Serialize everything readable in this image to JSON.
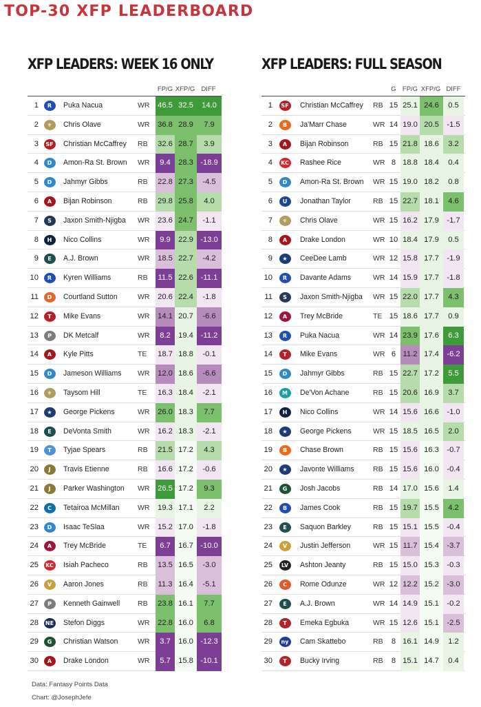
{
  "page_title": "TOP-30 XFP LEADERBOARD",
  "footer": {
    "source": "Data: Fantasy Points Data",
    "credit": "Chart: @JosephJefe"
  },
  "colors": {
    "title": "#c8343a",
    "positive_scale": [
      "#e8f4e4",
      "#b5dcaa",
      "#7cbf6c",
      "#3f9a3a"
    ],
    "negative_scale": [
      "#f1e6f1",
      "#d9bfda",
      "#b58cbc",
      "#7d3f95"
    ]
  },
  "teams": {
    "LAR": {
      "icon": "rams-icon",
      "color": "#1f4fb0",
      "glyph": "R"
    },
    "NO": {
      "icon": "saints-icon",
      "color": "#b39a5e",
      "glyph": "⚜"
    },
    "SF": {
      "icon": "49ers-icon",
      "color": "#b31f24",
      "glyph": "SF"
    },
    "DET": {
      "icon": "lions-icon",
      "color": "#2f88cc",
      "glyph": "D"
    },
    "ATL": {
      "icon": "falcons-icon",
      "color": "#a5161c",
      "glyph": "A"
    },
    "SEA": {
      "icon": "seahawks-icon",
      "color": "#24385a",
      "glyph": "S"
    },
    "HOU": {
      "icon": "texans-icon",
      "color": "#0c2340",
      "glyph": "H"
    },
    "PHI": {
      "icon": "eagles-icon",
      "color": "#1d4f4f",
      "glyph": "E"
    },
    "DEN": {
      "icon": "broncos-icon",
      "color": "#e2672c",
      "glyph": "D"
    },
    "TB": {
      "icon": "buccaneers-icon",
      "color": "#b3222a",
      "glyph": "T"
    },
    "PIT": {
      "icon": "steelers-icon",
      "color": "#7d7d7d",
      "glyph": "P"
    },
    "DAL": {
      "icon": "cowboys-icon",
      "color": "#1d3b74",
      "glyph": "★"
    },
    "TEN": {
      "icon": "titans-icon",
      "color": "#4b92db",
      "glyph": "T"
    },
    "JAX": {
      "icon": "jaguars-icon",
      "color": "#8a7a3a",
      "glyph": "J"
    },
    "CAR": {
      "icon": "panthers-icon",
      "color": "#0e6ea5",
      "glyph": "C"
    },
    "ARI": {
      "icon": "cardinals-icon",
      "color": "#a0143a",
      "glyph": "A"
    },
    "KC": {
      "icon": "chiefs-icon",
      "color": "#d8232a",
      "glyph": "KC"
    },
    "MIN": {
      "icon": "vikings-icon",
      "color": "#caa03a",
      "glyph": "V"
    },
    "GB": {
      "icon": "packers-icon",
      "color": "#1f5133",
      "glyph": "G"
    },
    "NE": {
      "icon": "patriots-icon",
      "color": "#1a2f56",
      "glyph": "NE"
    },
    "CIN": {
      "icon": "bengals-icon",
      "color": "#e96a1e",
      "glyph": "B"
    },
    "IND": {
      "icon": "colts-icon",
      "color": "#1f4690",
      "glyph": "U"
    },
    "MIA": {
      "icon": "dolphins-icon",
      "color": "#14a0a5",
      "glyph": "M"
    },
    "BUF": {
      "icon": "bills-icon",
      "color": "#1e4fb0",
      "glyph": "B"
    },
    "LV": {
      "icon": "raiders-icon",
      "color": "#222222",
      "glyph": "LV"
    },
    "CHI": {
      "icon": "bears-icon",
      "color": "#e0592a",
      "glyph": "C"
    },
    "NYG": {
      "icon": "giants-icon",
      "color": "#1f3a9a",
      "glyph": "ny"
    }
  },
  "chart_data": [
    {
      "type": "table",
      "title": "XFP LEADERS: WEEK 16 ONLY",
      "columns": [
        "FP/G",
        "XFP/G",
        "DIFF"
      ],
      "rows": [
        {
          "rank": "1",
          "team": "LAR",
          "player": "Puka Nacua",
          "pos": "WR",
          "fpg": 46.5,
          "xfpg": 32.5,
          "diff": 14.0
        },
        {
          "rank": "2",
          "team": "NO",
          "player": "Chris Olave",
          "pos": "WR",
          "fpg": 36.8,
          "xfpg": 28.9,
          "diff": 7.9
        },
        {
          "rank": "3",
          "team": "SF",
          "player": "Christian McCaffrey",
          "pos": "RB",
          "fpg": 32.6,
          "xfpg": 28.7,
          "diff": 3.9
        },
        {
          "rank": "4",
          "team": "DET",
          "player": "Amon-Ra St. Brown",
          "pos": "WR",
          "fpg": 9.4,
          "xfpg": 28.3,
          "diff": -18.9
        },
        {
          "rank": "5",
          "team": "DET",
          "player": "Jahmyr Gibbs",
          "pos": "RB",
          "fpg": 22.8,
          "xfpg": 27.3,
          "diff": -4.5
        },
        {
          "rank": "6",
          "team": "ATL",
          "player": "Bijan Robinson",
          "pos": "RB",
          "fpg": 29.8,
          "xfpg": 25.8,
          "diff": 4.0
        },
        {
          "rank": "7",
          "team": "SEA",
          "player": "Jaxon Smith-Njigba",
          "pos": "WR",
          "fpg": 23.6,
          "xfpg": 24.7,
          "diff": -1.1
        },
        {
          "rank": "8",
          "team": "HOU",
          "player": "Nico Collins",
          "pos": "WR",
          "fpg": 9.9,
          "xfpg": 22.9,
          "diff": -13.0
        },
        {
          "rank": "9",
          "team": "PHI",
          "player": "A.J. Brown",
          "pos": "WR",
          "fpg": 18.5,
          "xfpg": 22.7,
          "diff": -4.2
        },
        {
          "rank": "10",
          "team": "LAR",
          "player": "Kyren Williams",
          "pos": "RB",
          "fpg": 11.5,
          "xfpg": 22.6,
          "diff": -11.1
        },
        {
          "rank": "11",
          "team": "DEN",
          "player": "Courtland Sutton",
          "pos": "WR",
          "fpg": 20.6,
          "xfpg": 22.4,
          "diff": -1.8
        },
        {
          "rank": "12",
          "team": "TB",
          "player": "Mike Evans",
          "pos": "WR",
          "fpg": 14.1,
          "xfpg": 20.7,
          "diff": -6.6
        },
        {
          "rank": "13",
          "team": "PIT",
          "player": "DK Metcalf",
          "pos": "WR",
          "fpg": 8.2,
          "xfpg": 19.4,
          "diff": -11.2
        },
        {
          "rank": "14",
          "team": "ATL",
          "player": "Kyle Pitts",
          "pos": "TE",
          "fpg": 18.7,
          "xfpg": 18.8,
          "diff": -0.1
        },
        {
          "rank": "15",
          "team": "DET",
          "player": "Jameson Williams",
          "pos": "WR",
          "fpg": 12.0,
          "xfpg": 18.6,
          "diff": -6.6
        },
        {
          "rank": "16",
          "team": "NO",
          "player": "Taysom Hill",
          "pos": "TE",
          "fpg": 16.3,
          "xfpg": 18.4,
          "diff": -2.1
        },
        {
          "rank": "17",
          "team": "DAL",
          "player": "George Pickens",
          "pos": "WR",
          "fpg": 26.0,
          "xfpg": 18.3,
          "diff": 7.7
        },
        {
          "rank": "18",
          "team": "PHI",
          "player": "DeVonta Smith",
          "pos": "WR",
          "fpg": 16.2,
          "xfpg": 18.3,
          "diff": -2.1
        },
        {
          "rank": "19",
          "team": "TEN",
          "player": "Tyjae Spears",
          "pos": "RB",
          "fpg": 21.5,
          "xfpg": 17.2,
          "diff": 4.3
        },
        {
          "rank": "20",
          "team": "JAX",
          "player": "Travis Etienne",
          "pos": "RB",
          "fpg": 16.6,
          "xfpg": 17.2,
          "diff": -0.6
        },
        {
          "rank": "21",
          "team": "JAX",
          "player": "Parker Washington",
          "pos": "WR",
          "fpg": 26.5,
          "xfpg": 17.2,
          "diff": 9.3
        },
        {
          "rank": "22",
          "team": "CAR",
          "player": "Tetairoa McMillan",
          "pos": "WR",
          "fpg": 19.3,
          "xfpg": 17.1,
          "diff": 2.2
        },
        {
          "rank": "23",
          "team": "DET",
          "player": "Isaac TeSlaa",
          "pos": "WR",
          "fpg": 15.2,
          "xfpg": 17.0,
          "diff": -1.8
        },
        {
          "rank": "24",
          "team": "ARI",
          "player": "Trey McBride",
          "pos": "TE",
          "fpg": 6.7,
          "xfpg": 16.7,
          "diff": -10.0
        },
        {
          "rank": "25",
          "team": "KC",
          "player": "Isiah Pacheco",
          "pos": "RB",
          "fpg": 13.5,
          "xfpg": 16.5,
          "diff": -3.0
        },
        {
          "rank": "26",
          "team": "MIN",
          "player": "Aaron Jones",
          "pos": "RB",
          "fpg": 11.3,
          "xfpg": 16.4,
          "diff": -5.1
        },
        {
          "rank": "27",
          "team": "PIT",
          "player": "Kenneth Gainwell",
          "pos": "RB",
          "fpg": 23.8,
          "xfpg": 16.1,
          "diff": 7.7
        },
        {
          "rank": "28",
          "team": "NE",
          "player": "Stefon Diggs",
          "pos": "WR",
          "fpg": 22.8,
          "xfpg": 16.0,
          "diff": 6.8
        },
        {
          "rank": "29",
          "team": "GB",
          "player": "Christian Watson",
          "pos": "WR",
          "fpg": 3.7,
          "xfpg": 16.0,
          "diff": -12.3
        },
        {
          "rank": "30",
          "team": "ATL",
          "player": "Drake London",
          "pos": "WR",
          "fpg": 5.7,
          "xfpg": 15.8,
          "diff": -10.1
        }
      ]
    },
    {
      "type": "table",
      "title": "XFP LEADERS: FULL SEASON",
      "columns": [
        "G",
        "FP/G",
        "XFP/G",
        "DIFF"
      ],
      "rows": [
        {
          "rank": "1",
          "team": "SF",
          "player": "Christian McCaffrey",
          "pos": "RB",
          "g": 15,
          "fpg": 25.1,
          "xfpg": 24.6,
          "diff": 0.5
        },
        {
          "rank": "2",
          "team": "CIN",
          "player": "Ja'Marr Chase",
          "pos": "WR",
          "g": 14,
          "fpg": 19.0,
          "xfpg": 20.5,
          "diff": -1.5
        },
        {
          "rank": "3",
          "team": "ATL",
          "player": "Bijan Robinson",
          "pos": "RB",
          "g": 15,
          "fpg": 21.8,
          "xfpg": 18.6,
          "diff": 3.2
        },
        {
          "rank": "4",
          "team": "KC",
          "player": "Rashee Rice",
          "pos": "WR",
          "g": 8,
          "fpg": 18.8,
          "xfpg": 18.4,
          "diff": 0.4
        },
        {
          "rank": "5",
          "team": "DET",
          "player": "Amon-Ra St. Brown",
          "pos": "WR",
          "g": 15,
          "fpg": 19.0,
          "xfpg": 18.2,
          "diff": 0.8
        },
        {
          "rank": "6",
          "team": "IND",
          "player": "Jonathan Taylor",
          "pos": "RB",
          "g": 15,
          "fpg": 22.7,
          "xfpg": 18.1,
          "diff": 4.6
        },
        {
          "rank": "7",
          "team": "NO",
          "player": "Chris Olave",
          "pos": "WR",
          "g": 15,
          "fpg": 16.2,
          "xfpg": 17.9,
          "diff": -1.7
        },
        {
          "rank": "8",
          "team": "ATL",
          "player": "Drake London",
          "pos": "WR",
          "g": 10,
          "fpg": 18.4,
          "xfpg": 17.9,
          "diff": 0.5
        },
        {
          "rank": "9",
          "team": "DAL",
          "player": "CeeDee Lamb",
          "pos": "WR",
          "g": 12,
          "fpg": 15.8,
          "xfpg": 17.7,
          "diff": -1.9
        },
        {
          "rank": "10",
          "team": "LAR",
          "player": "Davante Adams",
          "pos": "WR",
          "g": 14,
          "fpg": 15.9,
          "xfpg": 17.7,
          "diff": -1.8
        },
        {
          "rank": "11",
          "team": "SEA",
          "player": "Jaxon Smith-Njigba",
          "pos": "WR",
          "g": 15,
          "fpg": 22.0,
          "xfpg": 17.7,
          "diff": 4.3
        },
        {
          "rank": "12",
          "team": "ARI",
          "player": "Trey McBride",
          "pos": "TE",
          "g": 15,
          "fpg": 18.6,
          "xfpg": 17.7,
          "diff": 0.9
        },
        {
          "rank": "13",
          "team": "LAR",
          "player": "Puka Nacua",
          "pos": "WR",
          "g": 14,
          "fpg": 23.9,
          "xfpg": 17.6,
          "diff": 6.3
        },
        {
          "rank": "14",
          "team": "TB",
          "player": "Mike Evans",
          "pos": "WR",
          "g": 6,
          "fpg": 11.2,
          "xfpg": 17.4,
          "diff": -6.2
        },
        {
          "rank": "15",
          "team": "DET",
          "player": "Jahmyr Gibbs",
          "pos": "RB",
          "g": 15,
          "fpg": 22.7,
          "xfpg": 17.2,
          "diff": 5.5
        },
        {
          "rank": "16",
          "team": "MIA",
          "player": "De'Von Achane",
          "pos": "RB",
          "g": 15,
          "fpg": 20.6,
          "xfpg": 16.9,
          "diff": 3.7
        },
        {
          "rank": "17",
          "team": "HOU",
          "player": "Nico Collins",
          "pos": "WR",
          "g": 14,
          "fpg": 15.6,
          "xfpg": 16.6,
          "diff": -1.0
        },
        {
          "rank": "18",
          "team": "DAL",
          "player": "George Pickens",
          "pos": "WR",
          "g": 15,
          "fpg": 18.5,
          "xfpg": 16.5,
          "diff": 2.0
        },
        {
          "rank": "19",
          "team": "CIN",
          "player": "Chase Brown",
          "pos": "RB",
          "g": 15,
          "fpg": 15.6,
          "xfpg": 16.3,
          "diff": -0.7
        },
        {
          "rank": "20",
          "team": "DAL",
          "player": "Javonte Williams",
          "pos": "RB",
          "g": 15,
          "fpg": 15.6,
          "xfpg": 16.0,
          "diff": -0.4
        },
        {
          "rank": "21",
          "team": "GB",
          "player": "Josh Jacobs",
          "pos": "RB",
          "g": 14,
          "fpg": 17.0,
          "xfpg": 15.6,
          "diff": 1.4
        },
        {
          "rank": "22",
          "team": "BUF",
          "player": "James Cook",
          "pos": "RB",
          "g": 15,
          "fpg": 19.7,
          "xfpg": 15.5,
          "diff": 4.2
        },
        {
          "rank": "23",
          "team": "PHI",
          "player": "Saquon Barkley",
          "pos": "RB",
          "g": 15,
          "fpg": 15.1,
          "xfpg": 15.5,
          "diff": -0.4
        },
        {
          "rank": "24",
          "team": "MIN",
          "player": "Justin Jefferson",
          "pos": "WR",
          "g": 15,
          "fpg": 11.7,
          "xfpg": 15.4,
          "diff": -3.7
        },
        {
          "rank": "25",
          "team": "LV",
          "player": "Ashton Jeanty",
          "pos": "RB",
          "g": 15,
          "fpg": 15.0,
          "xfpg": 15.3,
          "diff": -0.3
        },
        {
          "rank": "26",
          "team": "CHI",
          "player": "Rome Odunze",
          "pos": "WR",
          "g": 12,
          "fpg": 12.2,
          "xfpg": 15.2,
          "diff": -3.0
        },
        {
          "rank": "27",
          "team": "PHI",
          "player": "A.J. Brown",
          "pos": "WR",
          "g": 14,
          "fpg": 14.9,
          "xfpg": 15.1,
          "diff": -0.2
        },
        {
          "rank": "28",
          "team": "TB",
          "player": "Emeka Egbuka",
          "pos": "WR",
          "g": 15,
          "fpg": 12.6,
          "xfpg": 15.1,
          "diff": -2.5
        },
        {
          "rank": "29",
          "team": "NYG",
          "player": "Cam Skattebo",
          "pos": "RB",
          "g": 8,
          "fpg": 16.1,
          "xfpg": 14.9,
          "diff": 1.2
        },
        {
          "rank": "30",
          "team": "TB",
          "player": "Bucky Irving",
          "pos": "RB",
          "g": 8,
          "fpg": 15.1,
          "xfpg": 14.7,
          "diff": 0.4
        }
      ]
    }
  ]
}
